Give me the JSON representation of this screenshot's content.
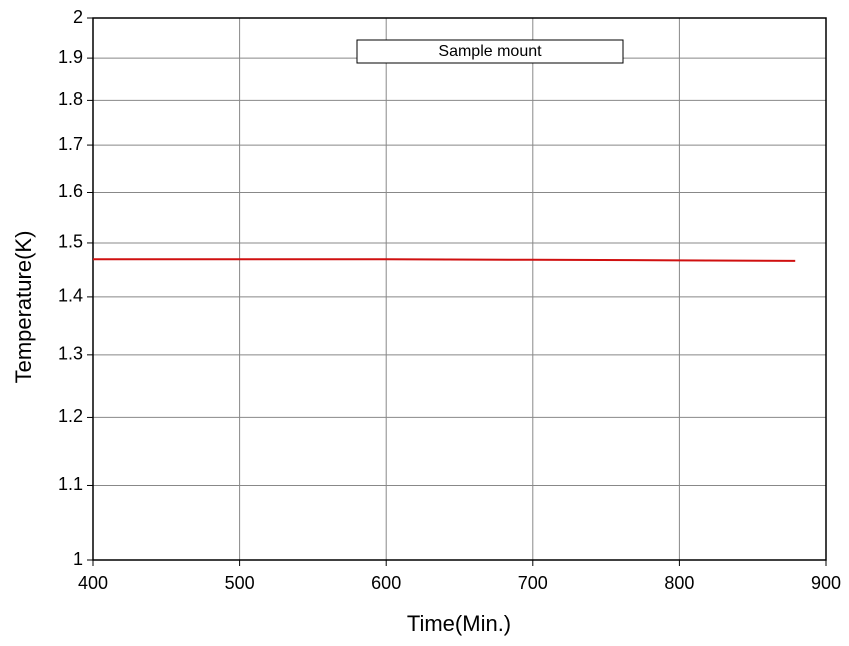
{
  "chart_data": {
    "type": "line",
    "xlabel": "Time(Min.)",
    "ylabel": "Temperature(K)",
    "x": [
      400,
      500,
      600,
      700,
      800,
      879
    ],
    "series": [
      {
        "name": "Sample mount",
        "color": "#d01010",
        "values": [
          1.469,
          1.469,
          1.469,
          1.468,
          1.467,
          1.466
        ]
      }
    ],
    "xlim": [
      400,
      900
    ],
    "xticks": [
      400,
      500,
      600,
      700,
      800,
      900
    ],
    "ylim": [
      1,
      2
    ],
    "yticks": [
      1,
      1.1,
      1.2,
      1.3,
      1.4,
      1.5,
      1.6,
      1.7,
      1.8,
      1.9,
      2
    ],
    "yscale": "log",
    "grid": true,
    "legend": "top"
  }
}
